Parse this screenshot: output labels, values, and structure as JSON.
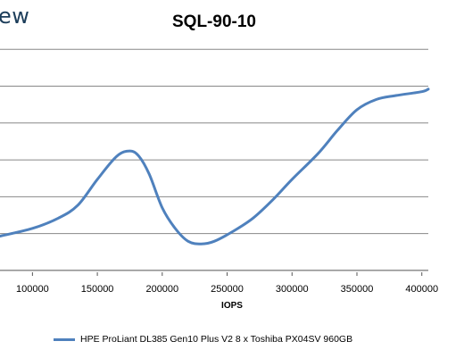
{
  "logo": {
    "text": "ew"
  },
  "colors": {
    "series": "#4f81bd",
    "grid": "#888888"
  },
  "chart_data": {
    "type": "line",
    "title": "SQL-90-10",
    "xlabel": "IOPS",
    "ylabel": "",
    "xlim": [
      75000,
      405000
    ],
    "ylim": [
      0,
      1
    ],
    "x_ticks": [
      100000,
      150000,
      200000,
      250000,
      300000,
      350000,
      400000
    ],
    "x_tick_labels": [
      "100000",
      "150000",
      "200000",
      "250000",
      "300000",
      "350000",
      "400000"
    ],
    "gridlines": 6,
    "legend_position": "bottom",
    "series": [
      {
        "name": "HPE ProLiant DL385 Gen10 Plus V2 8 x Toshiba PX04SV 960GB",
        "x": [
          75000,
          100000,
          120000,
          135000,
          150000,
          165000,
          175000,
          182000,
          190000,
          200000,
          210000,
          220000,
          230000,
          240000,
          255000,
          270000,
          285000,
          300000,
          320000,
          335000,
          350000,
          365000,
          380000,
          400000,
          405000
        ],
        "y": [
          0.14,
          0.17,
          0.21,
          0.26,
          0.36,
          0.45,
          0.47,
          0.45,
          0.38,
          0.25,
          0.17,
          0.12,
          0.11,
          0.12,
          0.16,
          0.21,
          0.28,
          0.36,
          0.46,
          0.55,
          0.63,
          0.67,
          0.685,
          0.7,
          0.71
        ]
      }
    ]
  }
}
